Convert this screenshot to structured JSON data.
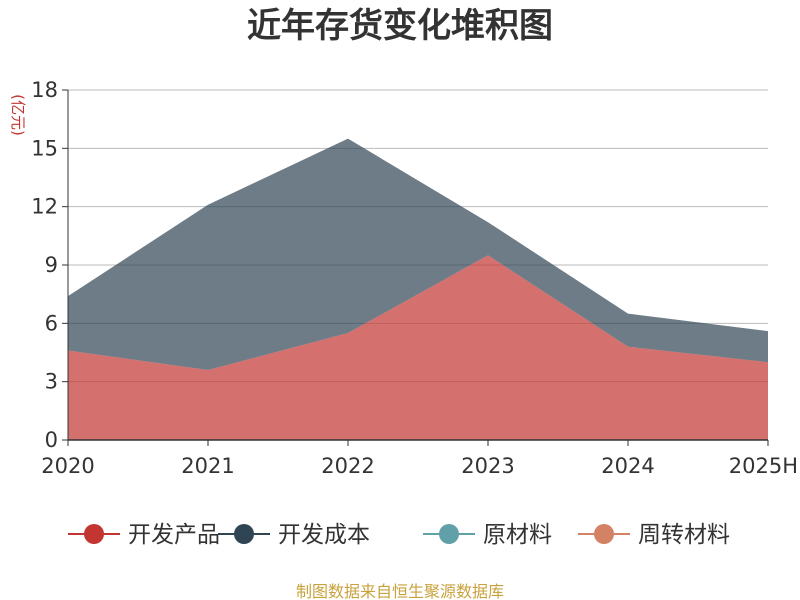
{
  "chart_data": {
    "type": "area",
    "stacked": true,
    "title": "近年存货变化堆积图",
    "ylabel": "(亿元)",
    "x": [
      "2020",
      "2021",
      "2022",
      "2023",
      "2024",
      "2025H"
    ],
    "ylim": [
      0,
      18
    ],
    "yticks": [
      "0",
      "3",
      "6",
      "9",
      "12",
      "15",
      "18"
    ],
    "grid": true,
    "legend_position": "bottom",
    "series": [
      {
        "name": "开发产品",
        "color": "#c23531",
        "values": [
          4.6,
          3.6,
          5.5,
          9.5,
          4.8,
          4.0
        ]
      },
      {
        "name": "开发成本",
        "color": "#2f4554",
        "values": [
          2.8,
          8.5,
          10.0,
          1.7,
          1.7,
          1.6
        ]
      },
      {
        "name": "原材料",
        "color": "#61a0a8",
        "values": [
          0,
          0,
          0,
          0,
          0,
          0
        ]
      },
      {
        "name": "周转材料",
        "color": "#d48265",
        "values": [
          0,
          0,
          0,
          0,
          0,
          0
        ]
      }
    ]
  },
  "source": "制图数据来自恒生聚源数据库",
  "colors": {
    "axis": "#333333",
    "grid": "#bbbbbb",
    "unit": "#c23531",
    "source": "#c8a23c"
  }
}
